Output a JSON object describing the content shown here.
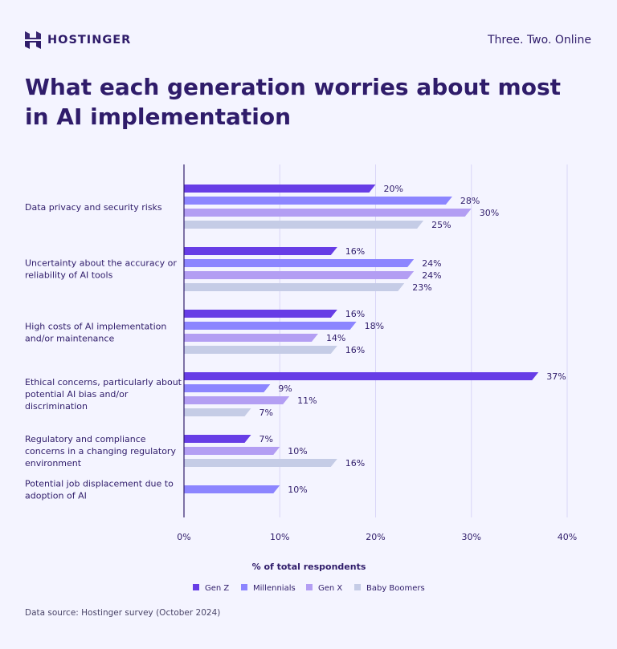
{
  "header": {
    "brand": "HOSTINGER",
    "tagline": "Three. Two. Online"
  },
  "title": "What each generation worries about most in AI implementation",
  "footer": {
    "source": "Data source: Hostinger survey (October 2024)"
  },
  "chart_data": {
    "type": "bar",
    "orientation": "horizontal",
    "title": "What each generation worries about most in AI implementation",
    "xlabel": "% of total respondents",
    "ylabel": "",
    "xlim": [
      0,
      40
    ],
    "x_ticks": [
      "0%",
      "10%",
      "20%",
      "30%",
      "40%"
    ],
    "grid": true,
    "legend_position": "bottom",
    "categories": [
      [
        "Data privacy and security risks"
      ],
      [
        "Uncertainty about the accuracy or",
        "reliability of AI tools"
      ],
      [
        "High costs of AI implementation",
        "and/or maintenance"
      ],
      [
        "Ethical concerns, particularly about",
        "potential AI bias and/or",
        "discrimination"
      ],
      [
        "Regulatory and compliance",
        "concerns in a changing regulatory",
        "environment"
      ],
      [
        "Potential job displacement due to",
        "adoption of AI"
      ]
    ],
    "series": [
      {
        "name": "Gen Z",
        "color": "#673de6",
        "values": [
          20,
          16,
          16,
          37,
          7,
          null
        ]
      },
      {
        "name": "Millennials",
        "color": "#8c85ff",
        "values": [
          28,
          24,
          18,
          9,
          null,
          10
        ]
      },
      {
        "name": "Gen X",
        "color": "#b39ef3",
        "values": [
          30,
          24,
          14,
          11,
          10,
          null
        ]
      },
      {
        "name": "Baby Boomers",
        "color": "#c5cce6",
        "values": [
          25,
          23,
          16,
          7,
          16,
          null
        ]
      }
    ]
  }
}
